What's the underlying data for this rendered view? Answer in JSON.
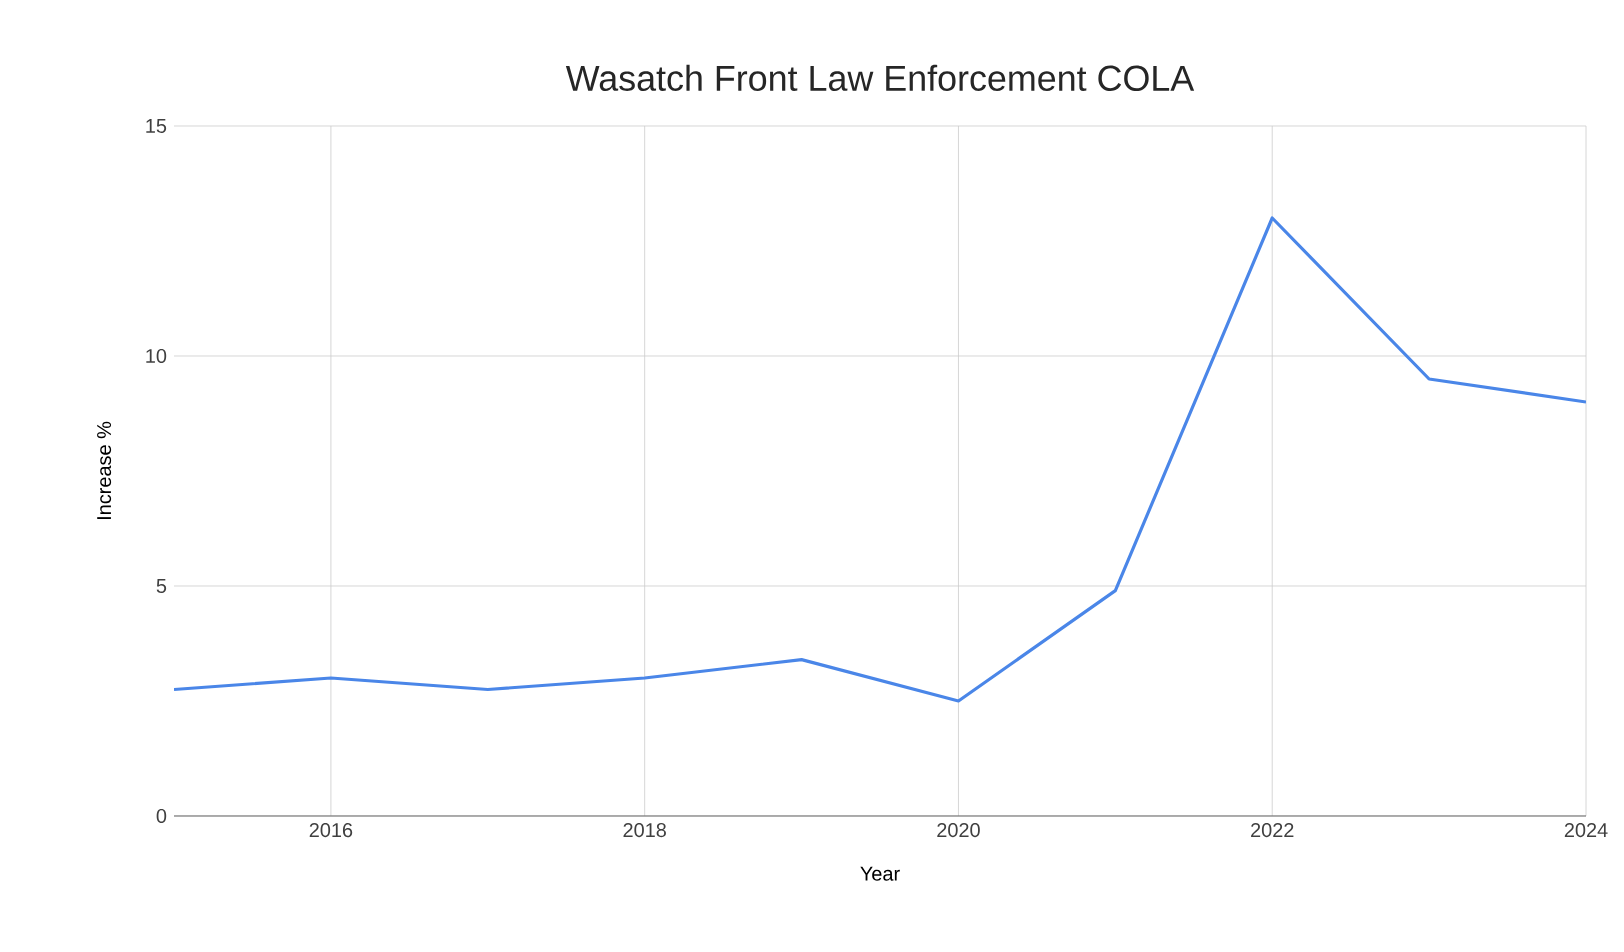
{
  "chart_data": {
    "type": "line",
    "title": "Wasatch Front Law Enforcement COLA",
    "xlabel": "Year",
    "ylabel": "Increase %",
    "x": [
      2015,
      2016,
      2017,
      2018,
      2019,
      2020,
      2021,
      2022,
      2023,
      2024
    ],
    "series": [
      {
        "color": "#4a86e8",
        "values": [
          2.75,
          3.0,
          2.75,
          3.0,
          3.4,
          2.5,
          4.9,
          13.0,
          9.5,
          9.0
        ]
      }
    ],
    "xlim": [
      2015,
      2024
    ],
    "ylim": [
      0,
      15
    ],
    "xticks": [
      2016,
      2018,
      2020,
      2022,
      2024
    ],
    "yticks": [
      0,
      5,
      10,
      15
    ],
    "grid": true,
    "marker": "none",
    "line_style": "solid"
  }
}
